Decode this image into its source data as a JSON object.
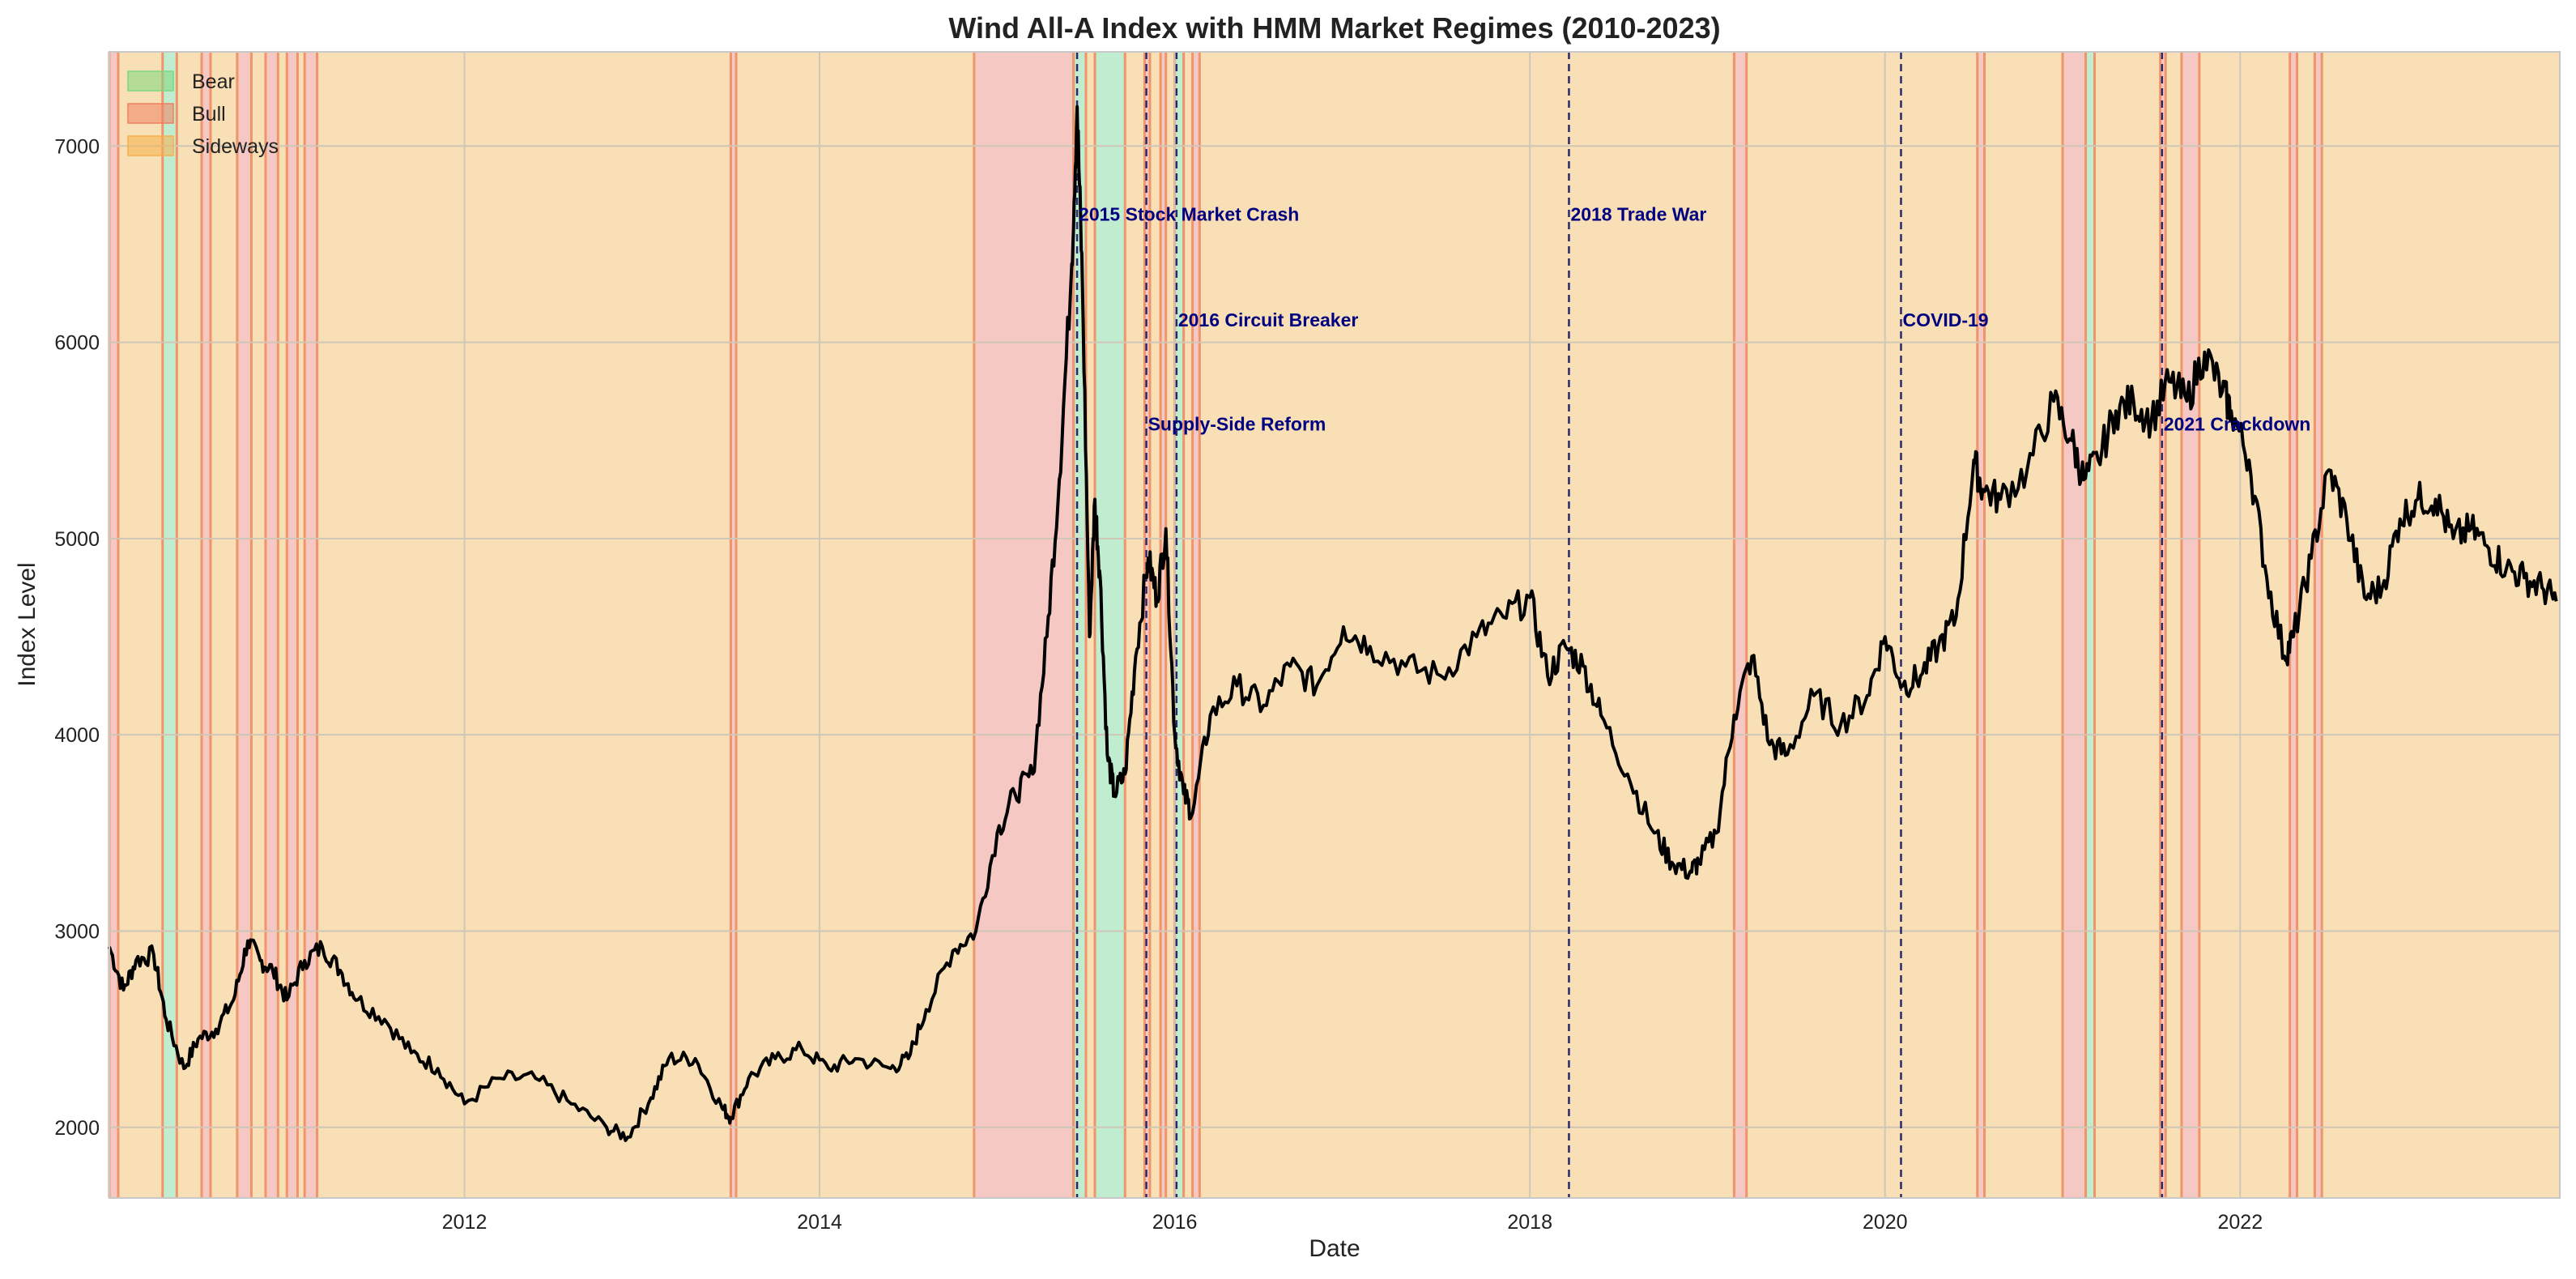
{
  "chart_data": {
    "type": "line",
    "title": "Wind All-A Index with HMM Market Regimes (2010-2023)",
    "xlabel": "Date",
    "ylabel": "Index Level",
    "xlim": [
      2010.0,
      2023.8
    ],
    "ylim": [
      1640,
      7480
    ],
    "x_ticks": [
      2012,
      2014,
      2016,
      2018,
      2020,
      2022
    ],
    "x_tick_labels": [
      "2012",
      "2014",
      "2016",
      "2018",
      "2020",
      "2022"
    ],
    "y_ticks": [
      2000,
      3000,
      4000,
      5000,
      6000,
      7000
    ],
    "y_tick_labels": [
      "2000",
      "3000",
      "4000",
      "5000",
      "6000",
      "7000"
    ],
    "grid": true,
    "legend_position": "top-left",
    "legend": [
      {
        "name": "Bear",
        "color": "#7dd87d"
      },
      {
        "name": "Bull",
        "color": "#f08060"
      },
      {
        "name": "Sideways",
        "color": "#f5b04a"
      }
    ],
    "regime_colors": {
      "Sideways": "#f9dfb6",
      "Bull": "#f6c8c4",
      "Bear": "#c0ecd0",
      "Edge": "#f0946a"
    },
    "regimes": [
      {
        "start": 2010.0,
        "end": 2010.05,
        "type": "Bull"
      },
      {
        "start": 2010.3,
        "end": 2010.38,
        "type": "Bear"
      },
      {
        "start": 2010.52,
        "end": 2010.57,
        "type": "Bull"
      },
      {
        "start": 2010.72,
        "end": 2010.8,
        "type": "Bull"
      },
      {
        "start": 2010.88,
        "end": 2010.95,
        "type": "Bull"
      },
      {
        "start": 2011.0,
        "end": 2011.06,
        "type": "Bull"
      },
      {
        "start": 2011.1,
        "end": 2011.17,
        "type": "Bull"
      },
      {
        "start": 2013.5,
        "end": 2013.53,
        "type": "Bull"
      },
      {
        "start": 2014.87,
        "end": 2015.43,
        "type": "Bull"
      },
      {
        "start": 2015.43,
        "end": 2015.5,
        "type": "Bear"
      },
      {
        "start": 2015.55,
        "end": 2015.72,
        "type": "Bear"
      },
      {
        "start": 2015.83,
        "end": 2015.86,
        "type": "Bull"
      },
      {
        "start": 2015.92,
        "end": 2015.95,
        "type": "Bull"
      },
      {
        "start": 2016.0,
        "end": 2016.05,
        "type": "Bear"
      },
      {
        "start": 2016.1,
        "end": 2016.14,
        "type": "Bull"
      },
      {
        "start": 2019.15,
        "end": 2019.22,
        "type": "Bull"
      },
      {
        "start": 2020.52,
        "end": 2020.56,
        "type": "Bull"
      },
      {
        "start": 2021.0,
        "end": 2021.13,
        "type": "Bull"
      },
      {
        "start": 2021.13,
        "end": 2021.18,
        "type": "Bear"
      },
      {
        "start": 2021.55,
        "end": 2021.58,
        "type": "Bull"
      },
      {
        "start": 2021.67,
        "end": 2021.77,
        "type": "Bull"
      },
      {
        "start": 2022.28,
        "end": 2022.32,
        "type": "Bull"
      },
      {
        "start": 2022.42,
        "end": 2022.46,
        "type": "Bull"
      }
    ],
    "events": [
      {
        "x": 2015.45,
        "label": "2015 Stock Market Crash",
        "label_y": 6620
      },
      {
        "x": 2015.84,
        "label": "Supply-Side Reform",
        "label_y": 5550
      },
      {
        "x": 2016.01,
        "label": "2016 Circuit Breaker",
        "label_y": 6080
      },
      {
        "x": 2018.22,
        "label": "2018 Trade War",
        "label_y": 6620
      },
      {
        "x": 2020.09,
        "label": "COVID-19",
        "label_y": 6080
      },
      {
        "x": 2021.56,
        "label": "2021 Crackdown",
        "label_y": 5550
      }
    ],
    "series": [
      {
        "name": "Wind All-A Index",
        "color": "#000000",
        "x": [
          2010.0,
          2010.08,
          2010.15,
          2010.25,
          2010.32,
          2010.42,
          2010.5,
          2010.6,
          2010.7,
          2010.78,
          2010.85,
          2010.92,
          2011.0,
          2011.1,
          2011.2,
          2011.3,
          2011.4,
          2011.55,
          2011.7,
          2011.85,
          2012.0,
          2012.2,
          2012.4,
          2012.6,
          2012.8,
          2012.92,
          2013.05,
          2013.15,
          2013.3,
          2013.45,
          2013.5,
          2013.6,
          2013.75,
          2013.9,
          2014.05,
          2014.2,
          2014.4,
          2014.5,
          2014.6,
          2014.75,
          2014.88,
          2015.0,
          2015.1,
          2015.2,
          2015.28,
          2015.35,
          2015.42,
          2015.45,
          2015.48,
          2015.52,
          2015.55,
          2015.58,
          2015.62,
          2015.66,
          2015.72,
          2015.78,
          2015.85,
          2015.9,
          2015.95,
          2016.0,
          2016.05,
          2016.1,
          2016.2,
          2016.35,
          2016.5,
          2016.65,
          2016.8,
          2016.95,
          2017.1,
          2017.3,
          2017.5,
          2017.7,
          2017.85,
          2018.0,
          2018.1,
          2018.2,
          2018.3,
          2018.4,
          2018.55,
          2018.7,
          2018.8,
          2018.9,
          2018.95,
          2019.05,
          2019.15,
          2019.25,
          2019.35,
          2019.45,
          2019.6,
          2019.75,
          2019.9,
          2020.0,
          2020.1,
          2020.2,
          2020.3,
          2020.4,
          2020.5,
          2020.55,
          2020.65,
          2020.8,
          2020.95,
          2021.05,
          2021.12,
          2021.2,
          2021.3,
          2021.4,
          2021.5,
          2021.6,
          2021.7,
          2021.8,
          2021.9,
          2021.95,
          2022.05,
          2022.15,
          2022.25,
          2022.3,
          2022.4,
          2022.5,
          2022.6,
          2022.7,
          2022.8,
          2022.9,
          2023.0,
          2023.1,
          2023.2,
          2023.3,
          2023.4,
          2023.5,
          2023.6,
          2023.7,
          2023.78
        ],
        "y": [
          2920,
          2700,
          2850,
          2880,
          2550,
          2300,
          2450,
          2500,
          2650,
          2950,
          2850,
          2800,
          2650,
          2850,
          2920,
          2800,
          2650,
          2550,
          2380,
          2300,
          2120,
          2250,
          2250,
          2120,
          2000,
          1950,
          2150,
          2350,
          2350,
          2100,
          2050,
          2250,
          2350,
          2400,
          2300,
          2350,
          2300,
          2350,
          2600,
          2900,
          3000,
          3500,
          3700,
          3800,
          4500,
          5300,
          6400,
          7200,
          6300,
          4500,
          5200,
          4800,
          3900,
          3700,
          3800,
          4400,
          4900,
          4700,
          5050,
          4000,
          3700,
          3600,
          4100,
          4250,
          4150,
          4350,
          4250,
          4550,
          4450,
          4350,
          4300,
          4500,
          4600,
          4700,
          4300,
          4450,
          4350,
          4100,
          3800,
          3500,
          3350,
          3300,
          3350,
          3500,
          4100,
          4400,
          3950,
          3900,
          4200,
          4050,
          4200,
          4500,
          4250,
          4300,
          4450,
          4600,
          5400,
          5250,
          5200,
          5350,
          5700,
          5500,
          5300,
          5400,
          5650,
          5700,
          5600,
          5800,
          5700,
          5950,
          5750,
          5650,
          5400,
          4800,
          4400,
          4500,
          4900,
          5350,
          5100,
          4700,
          4750,
          5100,
          5200,
          5200,
          5000,
          5050,
          4950,
          4850,
          4800,
          4750,
          4680
        ]
      }
    ]
  }
}
